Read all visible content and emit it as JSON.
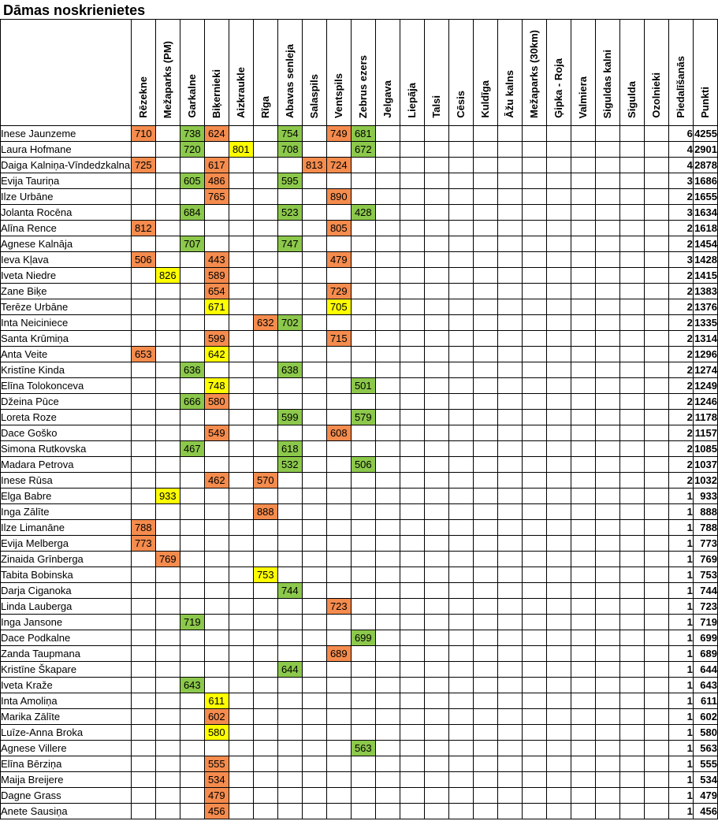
{
  "title": "Dāmas noskrienietes",
  "columns": [
    "Rēzekne",
    "Mežaparks (PM)",
    "Garkalne",
    "Biķernieki",
    "Aizkraukle",
    "Rīga",
    "Abavas senleja",
    "Salaspils",
    "Ventspils",
    "Zebrus ezers",
    "Jelgava",
    "Liepāja",
    "Talsi",
    "Cēsis",
    "Kuldīga",
    "Āžu kalns",
    "Mežaparks (30km)",
    "Ģipka - Roja",
    "Valmiera",
    "Siguldas kalni",
    "Sigulda",
    "Ozolnieki"
  ],
  "participations_label": "Piedalīšanās",
  "points_label": "Punkti",
  "colors": {
    "o": "#f58c4e",
    "g": "#8cc84b",
    "y": "#ffff00"
  },
  "rows": [
    {
      "name": "Inese Jaunzeme",
      "cells": [
        [
          "710",
          "o"
        ],
        null,
        [
          "738",
          "g"
        ],
        [
          "624",
          "o"
        ],
        null,
        null,
        [
          "754",
          "g"
        ],
        null,
        [
          "749",
          "o"
        ],
        [
          "681",
          "g"
        ]
      ],
      "part": "6",
      "total": "4255"
    },
    {
      "name": "Laura Hofmane",
      "cells": [
        null,
        null,
        [
          "720",
          "g"
        ],
        null,
        [
          "801",
          "y"
        ],
        null,
        [
          "708",
          "g"
        ],
        null,
        null,
        [
          "672",
          "g"
        ]
      ],
      "part": "4",
      "total": "2901"
    },
    {
      "name": "Daiga Kalniņa-Vīndedzkalna",
      "cells": [
        [
          "725",
          "o"
        ],
        null,
        null,
        [
          "617",
          "o"
        ],
        null,
        null,
        null,
        [
          "813",
          "o"
        ],
        [
          "724",
          "o"
        ],
        null
      ],
      "part": "4",
      "total": "2878"
    },
    {
      "name": "Evija Tauriņa",
      "cells": [
        null,
        null,
        [
          "605",
          "g"
        ],
        [
          "486",
          "o"
        ],
        null,
        null,
        [
          "595",
          "g"
        ],
        null,
        null,
        null
      ],
      "part": "3",
      "total": "1686"
    },
    {
      "name": "Ilze Urbāne",
      "cells": [
        null,
        null,
        null,
        [
          "765",
          "o"
        ],
        null,
        null,
        null,
        null,
        [
          "890",
          "o"
        ],
        null
      ],
      "part": "2",
      "total": "1655"
    },
    {
      "name": "Jolanta Rocēna",
      "cells": [
        null,
        null,
        [
          "684",
          "g"
        ],
        null,
        null,
        null,
        [
          "523",
          "g"
        ],
        null,
        null,
        [
          "428",
          "g"
        ]
      ],
      "part": "3",
      "total": "1634"
    },
    {
      "name": "Alīna Rence",
      "cells": [
        [
          "812",
          "o"
        ],
        null,
        null,
        null,
        null,
        null,
        null,
        null,
        [
          "805",
          "o"
        ],
        null
      ],
      "part": "2",
      "total": "1618"
    },
    {
      "name": "Agnese Kalnāja",
      "cells": [
        null,
        null,
        [
          "707",
          "g"
        ],
        null,
        null,
        null,
        [
          "747",
          "g"
        ],
        null,
        null,
        null
      ],
      "part": "2",
      "total": "1454"
    },
    {
      "name": "Ieva Kļava",
      "cells": [
        [
          "506",
          "o"
        ],
        null,
        null,
        [
          "443",
          "o"
        ],
        null,
        null,
        null,
        null,
        [
          "479",
          "o"
        ],
        null
      ],
      "part": "3",
      "total": "1428"
    },
    {
      "name": "Iveta Niedre",
      "cells": [
        null,
        [
          "826",
          "y"
        ],
        null,
        [
          "589",
          "o"
        ],
        null,
        null,
        null,
        null,
        null,
        null
      ],
      "part": "2",
      "total": "1415"
    },
    {
      "name": "Zane Biķe",
      "cells": [
        null,
        null,
        null,
        [
          "654",
          "o"
        ],
        null,
        null,
        null,
        null,
        [
          "729",
          "o"
        ],
        null
      ],
      "part": "2",
      "total": "1383"
    },
    {
      "name": "Terēze Urbāne",
      "cells": [
        null,
        null,
        null,
        [
          "671",
          "y"
        ],
        null,
        null,
        null,
        null,
        [
          "705",
          "y"
        ],
        null
      ],
      "part": "2",
      "total": "1376"
    },
    {
      "name": "Inta Neiciniece",
      "cells": [
        null,
        null,
        null,
        null,
        null,
        [
          "632",
          "o"
        ],
        [
          "702",
          "g"
        ],
        null,
        null,
        null
      ],
      "part": "2",
      "total": "1335"
    },
    {
      "name": "Santa Krūmiņa",
      "cells": [
        null,
        null,
        null,
        [
          "599",
          "o"
        ],
        null,
        null,
        null,
        null,
        [
          "715",
          "o"
        ],
        null
      ],
      "part": "2",
      "total": "1314"
    },
    {
      "name": "Anta Veite",
      "cells": [
        [
          "653",
          "o"
        ],
        null,
        null,
        [
          "642",
          "y"
        ],
        null,
        null,
        null,
        null,
        null,
        null
      ],
      "part": "2",
      "total": "1296"
    },
    {
      "name": "Kristīne Kinda",
      "cells": [
        null,
        null,
        [
          "636",
          "g"
        ],
        null,
        null,
        null,
        [
          "638",
          "g"
        ],
        null,
        null,
        null
      ],
      "part": "2",
      "total": "1274"
    },
    {
      "name": "Elīna Tolokonceva",
      "cells": [
        null,
        null,
        null,
        [
          "748",
          "y"
        ],
        null,
        null,
        null,
        null,
        null,
        [
          "501",
          "g"
        ]
      ],
      "part": "2",
      "total": "1249"
    },
    {
      "name": "Džeina Pūce",
      "cells": [
        null,
        null,
        [
          "666",
          "g"
        ],
        [
          "580",
          "o"
        ],
        null,
        null,
        null,
        null,
        null,
        null
      ],
      "part": "2",
      "total": "1246"
    },
    {
      "name": "Loreta Roze",
      "cells": [
        null,
        null,
        null,
        null,
        null,
        null,
        [
          "599",
          "g"
        ],
        null,
        null,
        [
          "579",
          "g"
        ]
      ],
      "part": "2",
      "total": "1178"
    },
    {
      "name": "Dace Goško",
      "cells": [
        null,
        null,
        null,
        [
          "549",
          "o"
        ],
        null,
        null,
        null,
        null,
        [
          "608",
          "o"
        ],
        null
      ],
      "part": "2",
      "total": "1157"
    },
    {
      "name": "Simona Rutkovska",
      "cells": [
        null,
        null,
        [
          "467",
          "g"
        ],
        null,
        null,
        null,
        [
          "618",
          "g"
        ],
        null,
        null,
        null
      ],
      "part": "2",
      "total": "1085"
    },
    {
      "name": "Madara Petrova",
      "cells": [
        null,
        null,
        null,
        null,
        null,
        null,
        [
          "532",
          "g"
        ],
        null,
        null,
        [
          "506",
          "g"
        ]
      ],
      "part": "2",
      "total": "1037"
    },
    {
      "name": "Inese Rūsa",
      "cells": [
        null,
        null,
        null,
        [
          "462",
          "o"
        ],
        null,
        [
          "570",
          "o"
        ],
        null,
        null,
        null,
        null
      ],
      "part": "2",
      "total": "1032"
    },
    {
      "name": "Elga Babre",
      "cells": [
        null,
        [
          "933",
          "y"
        ],
        null,
        null,
        null,
        null,
        null,
        null,
        null,
        null
      ],
      "part": "1",
      "total": "933"
    },
    {
      "name": "Inga Zālīte",
      "cells": [
        null,
        null,
        null,
        null,
        null,
        [
          "888",
          "o"
        ],
        null,
        null,
        null,
        null
      ],
      "part": "1",
      "total": "888"
    },
    {
      "name": "Ilze Limanāne",
      "cells": [
        [
          "788",
          "o"
        ],
        null,
        null,
        null,
        null,
        null,
        null,
        null,
        null,
        null
      ],
      "part": "1",
      "total": "788"
    },
    {
      "name": "Evija Melberga",
      "cells": [
        [
          "773",
          "o"
        ],
        null,
        null,
        null,
        null,
        null,
        null,
        null,
        null,
        null
      ],
      "part": "1",
      "total": "773"
    },
    {
      "name": "Zinaida Grīnberga",
      "cells": [
        null,
        [
          "769",
          "o"
        ],
        null,
        null,
        null,
        null,
        null,
        null,
        null,
        null
      ],
      "part": "1",
      "total": "769"
    },
    {
      "name": "Tabita Bobinska",
      "cells": [
        null,
        null,
        null,
        null,
        null,
        [
          "753",
          "y"
        ],
        null,
        null,
        null,
        null
      ],
      "part": "1",
      "total": "753"
    },
    {
      "name": "Darja Ciganoka",
      "cells": [
        null,
        null,
        null,
        null,
        null,
        null,
        [
          "744",
          "g"
        ],
        null,
        null,
        null
      ],
      "part": "1",
      "total": "744"
    },
    {
      "name": "Linda Lauberga",
      "cells": [
        null,
        null,
        null,
        null,
        null,
        null,
        null,
        null,
        [
          "723",
          "o"
        ],
        null
      ],
      "part": "1",
      "total": "723"
    },
    {
      "name": "Inga Jansone",
      "cells": [
        null,
        null,
        [
          "719",
          "g"
        ],
        null,
        null,
        null,
        null,
        null,
        null,
        null
      ],
      "part": "1",
      "total": "719"
    },
    {
      "name": "Dace Podkalne",
      "cells": [
        null,
        null,
        null,
        null,
        null,
        null,
        null,
        null,
        null,
        [
          "699",
          "g"
        ]
      ],
      "part": "1",
      "total": "699"
    },
    {
      "name": "Zanda Taupmana",
      "cells": [
        null,
        null,
        null,
        null,
        null,
        null,
        null,
        null,
        [
          "689",
          "o"
        ],
        null
      ],
      "part": "1",
      "total": "689"
    },
    {
      "name": "Kristīne Škapare",
      "cells": [
        null,
        null,
        null,
        null,
        null,
        null,
        [
          "644",
          "g"
        ],
        null,
        null,
        null
      ],
      "part": "1",
      "total": "644"
    },
    {
      "name": "Iveta Kraže",
      "cells": [
        null,
        null,
        [
          "643",
          "g"
        ],
        null,
        null,
        null,
        null,
        null,
        null,
        null
      ],
      "part": "1",
      "total": "643"
    },
    {
      "name": "Inta Amoliņa",
      "cells": [
        null,
        null,
        null,
        [
          "611",
          "y"
        ],
        null,
        null,
        null,
        null,
        null,
        null
      ],
      "part": "1",
      "total": "611"
    },
    {
      "name": "Marika Zālīte",
      "cells": [
        null,
        null,
        null,
        [
          "602",
          "o"
        ],
        null,
        null,
        null,
        null,
        null,
        null
      ],
      "part": "1",
      "total": "602"
    },
    {
      "name": "Luīze-Anna Broka",
      "cells": [
        null,
        null,
        null,
        [
          "580",
          "y"
        ],
        null,
        null,
        null,
        null,
        null,
        null
      ],
      "part": "1",
      "total": "580"
    },
    {
      "name": "Agnese Villere",
      "cells": [
        null,
        null,
        null,
        null,
        null,
        null,
        null,
        null,
        null,
        [
          "563",
          "g"
        ]
      ],
      "part": "1",
      "total": "563"
    },
    {
      "name": "Elīna Bērziņa",
      "cells": [
        null,
        null,
        null,
        [
          "555",
          "o"
        ],
        null,
        null,
        null,
        null,
        null,
        null
      ],
      "part": "1",
      "total": "555"
    },
    {
      "name": "Maija Breijere",
      "cells": [
        null,
        null,
        null,
        [
          "534",
          "o"
        ],
        null,
        null,
        null,
        null,
        null,
        null
      ],
      "part": "1",
      "total": "534"
    },
    {
      "name": "Dagne Grass",
      "cells": [
        null,
        null,
        null,
        [
          "479",
          "o"
        ],
        null,
        null,
        null,
        null,
        null,
        null
      ],
      "part": "1",
      "total": "479"
    },
    {
      "name": "Anete Sausiņa",
      "cells": [
        null,
        null,
        null,
        [
          "456",
          "o"
        ],
        null,
        null,
        null,
        null,
        null,
        null
      ],
      "part": "1",
      "total": "456"
    }
  ]
}
